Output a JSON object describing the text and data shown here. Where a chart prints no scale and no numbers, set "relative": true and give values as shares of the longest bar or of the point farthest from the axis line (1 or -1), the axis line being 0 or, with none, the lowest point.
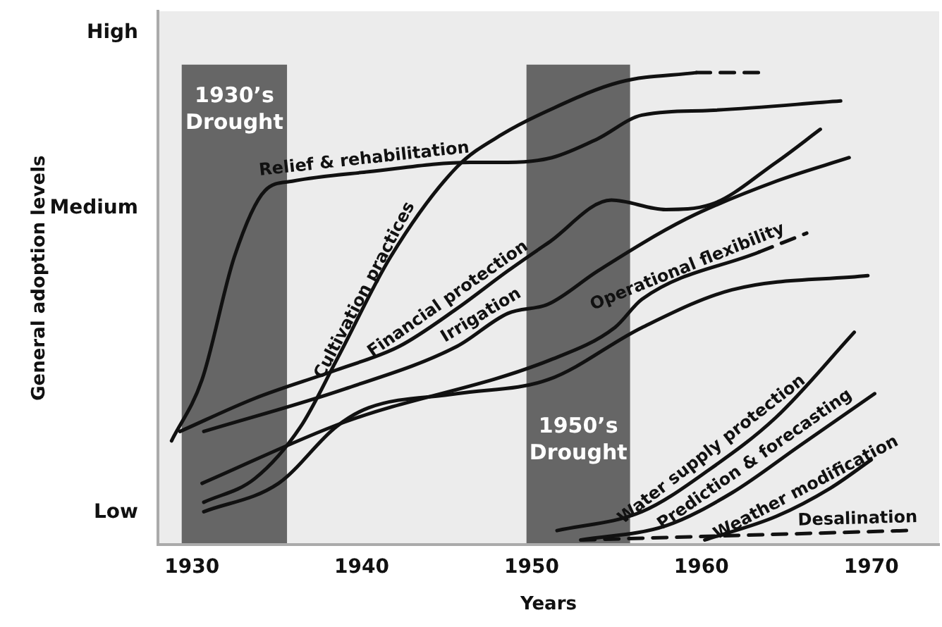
{
  "chart_data": {
    "type": "line",
    "relative": true,
    "xlabel": "Years",
    "xlim": [
      1928,
      1974
    ],
    "xticks": [
      1930,
      1940,
      1950,
      1960,
      1970
    ],
    "grid": false,
    "legend": false,
    "marker": "none",
    "line_style": "solid",
    "annotations": [
      "Low",
      "Medium",
      "High",
      "General adoption levels"
    ],
    "bands": [
      {
        "axis": "x",
        "from": 1929.4,
        "to": 1935.6,
        "label": "1930’s Drought",
        "color": "#666666"
      },
      {
        "axis": "x",
        "from": 1949.7,
        "to": 1955.8,
        "label": "1950’s Drought",
        "color": "#666666"
      }
    ],
    "series": [
      {
        "name": "Relief & rehabilitation",
        "color": "#111111",
        "x": [
          1928.8,
          1930.6,
          1932.5,
          1934.3,
          1935.9,
          1940.4,
          1946.4,
          1948.6,
          1951.2,
          1953.9,
          1956.5,
          1960.5,
          1968.2
        ],
        "values": [
          0.22,
          0.35,
          0.61,
          0.75,
          0.77,
          0.79,
          0.81,
          0.81,
          0.82,
          0.86,
          0.91,
          0.92,
          0.94
        ]
      },
      {
        "name": "Cultivation practices",
        "color": "#111111",
        "x": [
          1930.7,
          1933.7,
          1936.4,
          1938.5,
          1941.7,
          1945.6,
          1948.3,
          1951.0,
          1955.2,
          1959.7
        ],
        "values": [
          0.09,
          0.14,
          0.25,
          0.39,
          0.61,
          0.8,
          0.87,
          0.92,
          0.98,
          1
        ]
      },
      {
        "color": "#111111",
        "line_style": "dashed",
        "x": [
          1959.7,
          1963.4
        ],
        "values": [
          1,
          1
        ]
      },
      {
        "name": "Financial protection",
        "color": "#111111",
        "x": [
          1929.3,
          1933.7,
          1938.5,
          1942.2,
          1945.6,
          1948.6,
          1951.0,
          1954.7,
          1957.9,
          1960.5,
          1964.4,
          1967.0
        ],
        "values": [
          0.24,
          0.31,
          0.37,
          0.42,
          0.5,
          0.58,
          0.64,
          0.73,
          0.71,
          0.72,
          0.81,
          0.88
        ]
      },
      {
        "name": "Irrigation",
        "color": "#111111",
        "x": [
          1930.7,
          1939.0,
          1945.6,
          1948.6,
          1951.0,
          1953.9,
          1959.1,
          1964.4,
          1968.7
        ],
        "values": [
          0.24,
          0.33,
          0.42,
          0.49,
          0.51,
          0.58,
          0.69,
          0.77,
          0.82
        ]
      },
      {
        "name": "Operational flexibility",
        "color": "#111111",
        "x": [
          1930.6,
          1939.0,
          1951.0,
          1954.9,
          1956.5,
          1963.4
        ],
        "values": [
          0.13,
          0.26,
          0.39,
          0.46,
          0.52,
          0.62
        ]
      },
      {
        "color": "#111111",
        "line_style": "dashed",
        "x": [
          1963.4,
          1966.2
        ],
        "values": [
          0.62,
          0.66
        ]
      },
      {
        "color": "#111111",
        "x": [
          1930.7,
          1935.1,
          1938.5,
          1940.4,
          1945.6,
          1951.0,
          1956.5,
          1961.8,
          1969.8
        ],
        "values": [
          0.07,
          0.13,
          0.25,
          0.29,
          0.32,
          0.35,
          0.46,
          0.54,
          0.57
        ]
      },
      {
        "name": "Water supply protection",
        "color": "#111111",
        "x": [
          1951.5,
          1956.5,
          1960.5,
          1964.4,
          1969.0
        ],
        "values": [
          0.03,
          0.07,
          0.16,
          0.27,
          0.45
        ]
      },
      {
        "name": "Prediction & forecasting",
        "color": "#111111",
        "x": [
          1952.9,
          1957.9,
          1961.8,
          1965.8,
          1970.2
        ],
        "values": [
          0.01,
          0.04,
          0.11,
          0.21,
          0.32
        ]
      },
      {
        "name": "Weather modification",
        "color": "#111111",
        "x": [
          1960.2,
          1964.4,
          1967.6,
          1970.0
        ],
        "values": [
          0.01,
          0.06,
          0.12,
          0.18
        ]
      },
      {
        "name": "Desalination",
        "color": "#111111",
        "line_style": "dashed",
        "x": [
          1952.9,
          1972.1
        ],
        "values": [
          0.01,
          0.03
        ]
      }
    ]
  }
}
